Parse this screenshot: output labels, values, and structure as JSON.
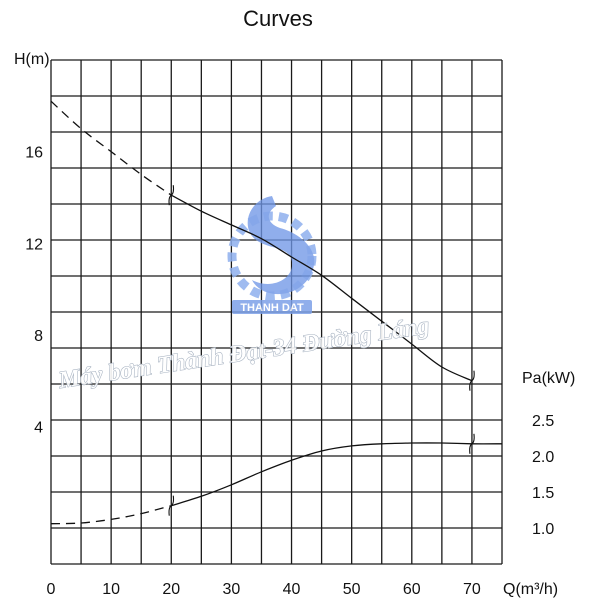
{
  "chart_data": {
    "type": "line",
    "title": "Curves",
    "x": {
      "label": "Q(m³/h)",
      "ticks": [
        0,
        10,
        20,
        30,
        40,
        50,
        60,
        70
      ],
      "range": [
        0,
        75
      ]
    },
    "y_left": {
      "label": "H(m)",
      "ticks": [
        4,
        8,
        12,
        16
      ],
      "range": [
        -2,
        20
      ]
    },
    "y_right": {
      "label": "Pa(kW)",
      "ticks": [
        2.5,
        2.0,
        1.5,
        1.0
      ]
    },
    "grid": true,
    "series": [
      {
        "axis": "left",
        "color": "#111111",
        "dashed_segment": {
          "x": [
            0,
            5,
            10,
            15,
            20
          ],
          "y": [
            18.2,
            17.0,
            16.0,
            15.0,
            14.1
          ]
        },
        "solid_segment": {
          "x": [
            20,
            25,
            30,
            35,
            40,
            45,
            50,
            55,
            60,
            65,
            70
          ],
          "y": [
            14.1,
            13.4,
            12.8,
            12.2,
            11.4,
            10.6,
            9.6,
            8.6,
            7.6,
            6.6,
            6.0
          ]
        },
        "range_marks_x": [
          20,
          70
        ]
      },
      {
        "axis": "right",
        "color": "#111111",
        "dashed_segment": {
          "x": [
            0,
            5,
            10,
            15,
            20
          ],
          "y": [
            1.06,
            1.07,
            1.12,
            1.2,
            1.31
          ]
        },
        "solid_segment": {
          "x": [
            20,
            25,
            30,
            35,
            40,
            45,
            50,
            55,
            60,
            65,
            70,
            75
          ],
          "y": [
            1.31,
            1.44,
            1.6,
            1.78,
            1.94,
            2.07,
            2.14,
            2.17,
            2.18,
            2.18,
            2.17,
            2.17
          ]
        },
        "range_marks_x": [
          20,
          70
        ]
      }
    ]
  },
  "watermark": {
    "text": "Máy bơm Thành Đạt-34 Đường Láng",
    "logo_text": "THANH DAT",
    "logo_color": "#3d6fd8"
  }
}
